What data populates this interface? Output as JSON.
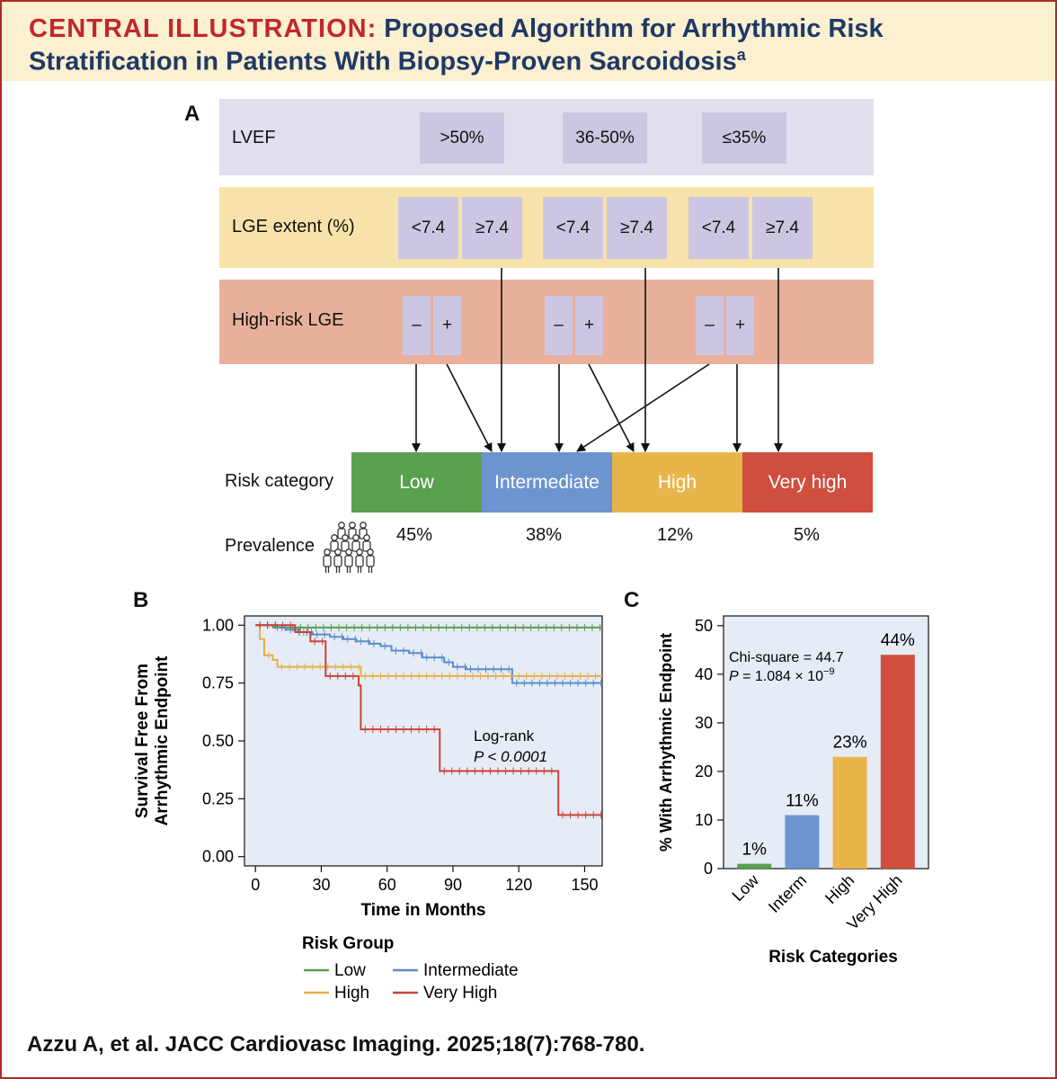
{
  "header": {
    "lead": "CENTRAL ILLUSTRATION:",
    "title_line1": "Proposed Algorithm for Arrhythmic Risk",
    "title_line2": "Stratification in Patients With Biopsy-Proven Sarcoidosis",
    "superscript": "a"
  },
  "panel_a": {
    "letter": "A",
    "lvef": {
      "label": "LVEF",
      "options": [
        ">50%",
        "36-50%",
        "≤35%"
      ]
    },
    "lge": {
      "label": "LGE extent (%)",
      "options": [
        "<7.4",
        "≥7.4",
        "<7.4",
        "≥7.4",
        "<7.4",
        "≥7.4"
      ]
    },
    "high_risk": {
      "label": "High-risk LGE",
      "options": [
        "–",
        "+",
        "–",
        "+",
        "–",
        "+"
      ]
    },
    "risk": {
      "label": "Risk category",
      "categories": [
        "Low",
        "Intermediate",
        "High",
        "Very high"
      ],
      "colors": [
        "#59a04f",
        "#6d94cf",
        "#e8b54a",
        "#cf4e3e"
      ]
    },
    "prevalence": {
      "label": "Prevalence",
      "values": [
        "45%",
        "38%",
        "12%",
        "5%"
      ]
    }
  },
  "panel_b": {
    "letter": "B",
    "chart_data": {
      "type": "line",
      "title": "",
      "xlabel": "Time in Months",
      "ylabel_lines": [
        "Survival Free From",
        "Arrhythmic Endpoint"
      ],
      "xlim": [
        -5,
        158
      ],
      "ylim": [
        -0.04,
        1.04
      ],
      "xticks": [
        0,
        30,
        60,
        90,
        120,
        150
      ],
      "yticks": [
        0.0,
        0.25,
        0.5,
        0.75,
        1.0
      ],
      "ytick_labels": [
        "0.00",
        "0.25",
        "0.50",
        "0.75",
        "1.00"
      ],
      "annotation": [
        "Log-rank",
        "P < 0.0001"
      ],
      "legend_title": "Risk Group",
      "legend_placement": "bottom",
      "series": [
        {
          "name": "Low",
          "color": "#5a9e4f",
          "points": [
            [
              0,
              1.0
            ],
            [
              8,
              1.0
            ],
            [
              8,
              0.99
            ],
            [
              158,
              0.99
            ]
          ]
        },
        {
          "name": "Intermediate",
          "color": "#5b8cc9",
          "points": [
            [
              0,
              1.0
            ],
            [
              10,
              1.0
            ],
            [
              10,
              0.99
            ],
            [
              14,
              0.99
            ],
            [
              14,
              0.98
            ],
            [
              20,
              0.98
            ],
            [
              20,
              0.97
            ],
            [
              26,
              0.97
            ],
            [
              26,
              0.96
            ],
            [
              34,
              0.96
            ],
            [
              34,
              0.95
            ],
            [
              40,
              0.95
            ],
            [
              40,
              0.94
            ],
            [
              46,
              0.94
            ],
            [
              46,
              0.93
            ],
            [
              52,
              0.93
            ],
            [
              52,
              0.92
            ],
            [
              57,
              0.92
            ],
            [
              57,
              0.91
            ],
            [
              62,
              0.91
            ],
            [
              62,
              0.89
            ],
            [
              70,
              0.89
            ],
            [
              70,
              0.88
            ],
            [
              76,
              0.88
            ],
            [
              76,
              0.86
            ],
            [
              86,
              0.86
            ],
            [
              86,
              0.84
            ],
            [
              90,
              0.84
            ],
            [
              90,
              0.82
            ],
            [
              96,
              0.82
            ],
            [
              96,
              0.81
            ],
            [
              117,
              0.81
            ],
            [
              117,
              0.75
            ],
            [
              158,
              0.75
            ]
          ]
        },
        {
          "name": "High",
          "color": "#e5b048",
          "points": [
            [
              0,
              1.0
            ],
            [
              2,
              1.0
            ],
            [
              2,
              0.94
            ],
            [
              4,
              0.94
            ],
            [
              4,
              0.87
            ],
            [
              8,
              0.87
            ],
            [
              8,
              0.85
            ],
            [
              10,
              0.85
            ],
            [
              10,
              0.82
            ],
            [
              48,
              0.82
            ],
            [
              48,
              0.78
            ],
            [
              158,
              0.78
            ]
          ]
        },
        {
          "name": "Very High",
          "color": "#c8443b",
          "points": [
            [
              0,
              1.0
            ],
            [
              18,
              1.0
            ],
            [
              18,
              0.97
            ],
            [
              25,
              0.97
            ],
            [
              25,
              0.93
            ],
            [
              32,
              0.93
            ],
            [
              32,
              0.78
            ],
            [
              47,
              0.78
            ],
            [
              47,
              0.74
            ],
            [
              48,
              0.74
            ],
            [
              48,
              0.55
            ],
            [
              84,
              0.55
            ],
            [
              84,
              0.37
            ],
            [
              138,
              0.37
            ],
            [
              138,
              0.18
            ],
            [
              158,
              0.18
            ]
          ]
        }
      ]
    }
  },
  "panel_c": {
    "letter": "C",
    "chart_data": {
      "type": "bar",
      "title": "",
      "categories": [
        "Low",
        "Interm",
        "High",
        "Very High"
      ],
      "values": [
        1,
        11,
        23,
        44
      ],
      "value_labels": [
        "1%",
        "11%",
        "23%",
        "44%"
      ],
      "colors": [
        "#59a04f",
        "#6d94cf",
        "#e8b54a",
        "#cf4e3e"
      ],
      "xlabel": "Risk Categories",
      "ylabel": "% With Arrhythmic Endpoint",
      "ylim": [
        0,
        52
      ],
      "yticks": [
        0,
        10,
        20,
        30,
        40,
        50
      ],
      "annotation": [
        "Chi-square = 44.7",
        "P = 1.084 × 10",
        "−9"
      ]
    }
  },
  "footer": {
    "citation": "Azzu A, et al. JACC Cardiovasc Imaging. 2025;18(7):768-780."
  }
}
